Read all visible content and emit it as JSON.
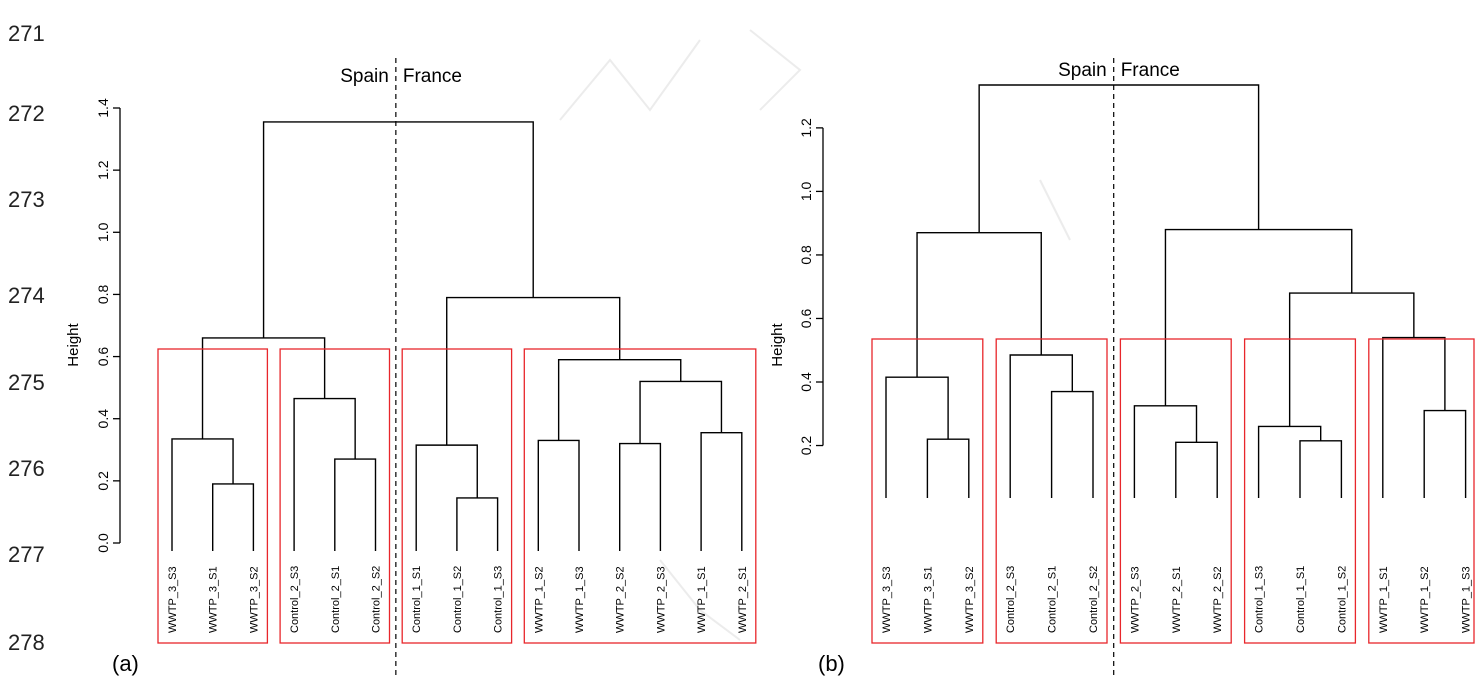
{
  "line_numbers": [
    "271",
    "272",
    "273",
    "274",
    "275",
    "276",
    "277",
    "278"
  ],
  "panel_letters": [
    "(a)",
    "(b)"
  ],
  "colors": {
    "tree": "#000000",
    "cluster_box": "#e8262b",
    "divider": "#000000"
  },
  "chart_data": [
    {
      "type": "dendrogram",
      "panel": "(a)",
      "ylabel": "Height",
      "ylim": [
        0,
        1.4
      ],
      "yticks": [
        0.0,
        0.2,
        0.4,
        0.6,
        0.8,
        1.0,
        1.2,
        1.4
      ],
      "tick_labels": [
        "0.0",
        "0.2",
        "0.4",
        "0.6",
        "0.8",
        "1.0",
        "1.2",
        "1.4"
      ],
      "leaves": [
        "WWTP_3_S3",
        "WWTP_3_S1",
        "WWTP_3_S2",
        "Control_2_S3",
        "Control_2_S1",
        "Control_2_S2",
        "Control_1_S1",
        "Control_1_S2",
        "Control_1_S3",
        "WWTP_1_S2",
        "WWTP_1_S3",
        "WWTP_2_S2",
        "WWTP_2_S3",
        "WWTP_1_S1",
        "WWTP_2_S1"
      ],
      "merges": [
        {
          "id": "a1",
          "left": 1,
          "right": 2,
          "height": 0.19
        },
        {
          "id": "a2",
          "left": 0,
          "right": "a1",
          "height": 0.335
        },
        {
          "id": "a3",
          "left": 4,
          "right": 5,
          "height": 0.27
        },
        {
          "id": "a4",
          "left": 3,
          "right": "a3",
          "height": 0.465
        },
        {
          "id": "a5",
          "left": "a2",
          "right": "a4",
          "height": 0.66
        },
        {
          "id": "a6",
          "left": 7,
          "right": 8,
          "height": 0.145
        },
        {
          "id": "a7",
          "left": 6,
          "right": "a6",
          "height": 0.315
        },
        {
          "id": "a8",
          "left": 9,
          "right": 10,
          "height": 0.33
        },
        {
          "id": "a9",
          "left": 11,
          "right": 12,
          "height": 0.32
        },
        {
          "id": "a10",
          "left": 13,
          "right": 14,
          "height": 0.355
        },
        {
          "id": "a11",
          "left": "a9",
          "right": "a10",
          "height": 0.52
        },
        {
          "id": "a12",
          "left": "a8",
          "right": "a11",
          "height": 0.59
        },
        {
          "id": "a13",
          "left": "a7",
          "right": "a12",
          "height": 0.79
        },
        {
          "id": "a14",
          "left": "a5",
          "right": "a13",
          "height": 1.355
        }
      ],
      "clusters": [
        [
          0,
          2
        ],
        [
          3,
          5
        ],
        [
          6,
          8
        ],
        [
          9,
          14
        ]
      ],
      "divider": {
        "after_leaf": 5,
        "left_label": "Spain",
        "right_label": "France"
      }
    },
    {
      "type": "dendrogram",
      "panel": "(b)",
      "ylabel": "Height",
      "ylim": [
        0.06,
        1.42
      ],
      "yticks": [
        0.2,
        0.4,
        0.6,
        0.8,
        1.0,
        1.2
      ],
      "tick_labels": [
        "0.2",
        "0.4",
        "0.6",
        "0.8",
        "1.0",
        "1.2"
      ],
      "leaves": [
        "WWTP_3_S3",
        "WWTP_3_S1",
        "WWTP_3_S2",
        "Control_2_S3",
        "Control_2_S1",
        "Control_2_S2",
        "WWTP_2_S3",
        "WWTP_2_S1",
        "WWTP_2_S2",
        "Control_1_S3",
        "Control_1_S1",
        "Control_1_S2",
        "WWTP_1_S1",
        "WWTP_1_S2",
        "WWTP_1_S3"
      ],
      "merges": [
        {
          "id": "b1",
          "left": 1,
          "right": 2,
          "height": 0.22
        },
        {
          "id": "b2",
          "left": 0,
          "right": "b1",
          "height": 0.415
        },
        {
          "id": "b3",
          "left": 4,
          "right": 5,
          "height": 0.37
        },
        {
          "id": "b4",
          "left": 3,
          "right": "b3",
          "height": 0.485
        },
        {
          "id": "b5",
          "left": "b2",
          "right": "b4",
          "height": 0.87
        },
        {
          "id": "b6",
          "left": 7,
          "right": 8,
          "height": 0.21
        },
        {
          "id": "b7",
          "left": 6,
          "right": "b6",
          "height": 0.325
        },
        {
          "id": "b8",
          "left": 10,
          "right": 11,
          "height": 0.215
        },
        {
          "id": "b9",
          "left": 9,
          "right": "b8",
          "height": 0.26
        },
        {
          "id": "b10",
          "left": 13,
          "right": 14,
          "height": 0.31
        },
        {
          "id": "b11",
          "left": 12,
          "right": "b10",
          "height": 0.54
        },
        {
          "id": "b12",
          "left": "b9",
          "right": "b11",
          "height": 0.68
        },
        {
          "id": "b13",
          "left": "b7",
          "right": "b12",
          "height": 0.88
        },
        {
          "id": "b14",
          "left": "b5",
          "right": "b13",
          "height": 1.335
        }
      ],
      "clusters": [
        [
          0,
          2
        ],
        [
          3,
          5
        ],
        [
          6,
          8
        ],
        [
          9,
          11
        ],
        [
          12,
          14
        ]
      ],
      "divider": {
        "after_leaf": 5,
        "left_label": "Spain",
        "right_label": "France"
      }
    }
  ]
}
